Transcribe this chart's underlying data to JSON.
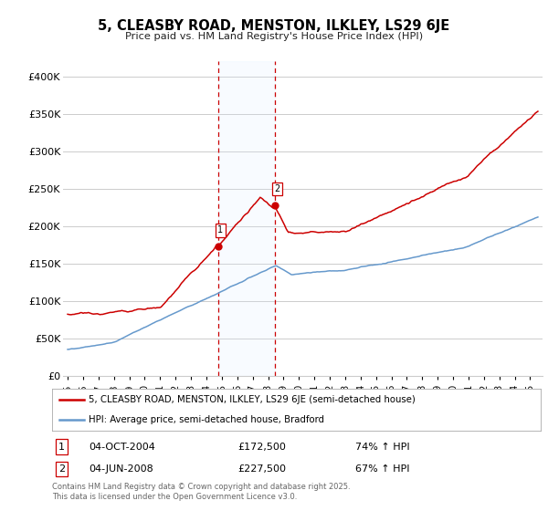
{
  "title": "5, CLEASBY ROAD, MENSTON, ILKLEY, LS29 6JE",
  "subtitle": "Price paid vs. HM Land Registry's House Price Index (HPI)",
  "ylim": [
    0,
    420000
  ],
  "yticks": [
    0,
    50000,
    100000,
    150000,
    200000,
    250000,
    300000,
    350000,
    400000
  ],
  "ytick_labels": [
    "£0",
    "£50K",
    "£100K",
    "£150K",
    "£200K",
    "£250K",
    "£300K",
    "£350K",
    "£400K"
  ],
  "sale1_date": 2004.75,
  "sale1_price": 172500,
  "sale2_date": 2008.42,
  "sale2_price": 227500,
  "red_line_color": "#cc0000",
  "blue_line_color": "#6699cc",
  "shade_color": "#ddeeff",
  "vline_color": "#cc0000",
  "background_color": "#ffffff",
  "grid_color": "#cccccc",
  "legend1_label": "5, CLEASBY ROAD, MENSTON, ILKLEY, LS29 6JE (semi-detached house)",
  "legend2_label": "HPI: Average price, semi-detached house, Bradford",
  "annotation1_date": "04-OCT-2004",
  "annotation1_price": "£172,500",
  "annotation1_hpi": "74% ↑ HPI",
  "annotation2_date": "04-JUN-2008",
  "annotation2_price": "£227,500",
  "annotation2_hpi": "67% ↑ HPI",
  "footnote": "Contains HM Land Registry data © Crown copyright and database right 2025.\nThis data is licensed under the Open Government Licence v3.0."
}
